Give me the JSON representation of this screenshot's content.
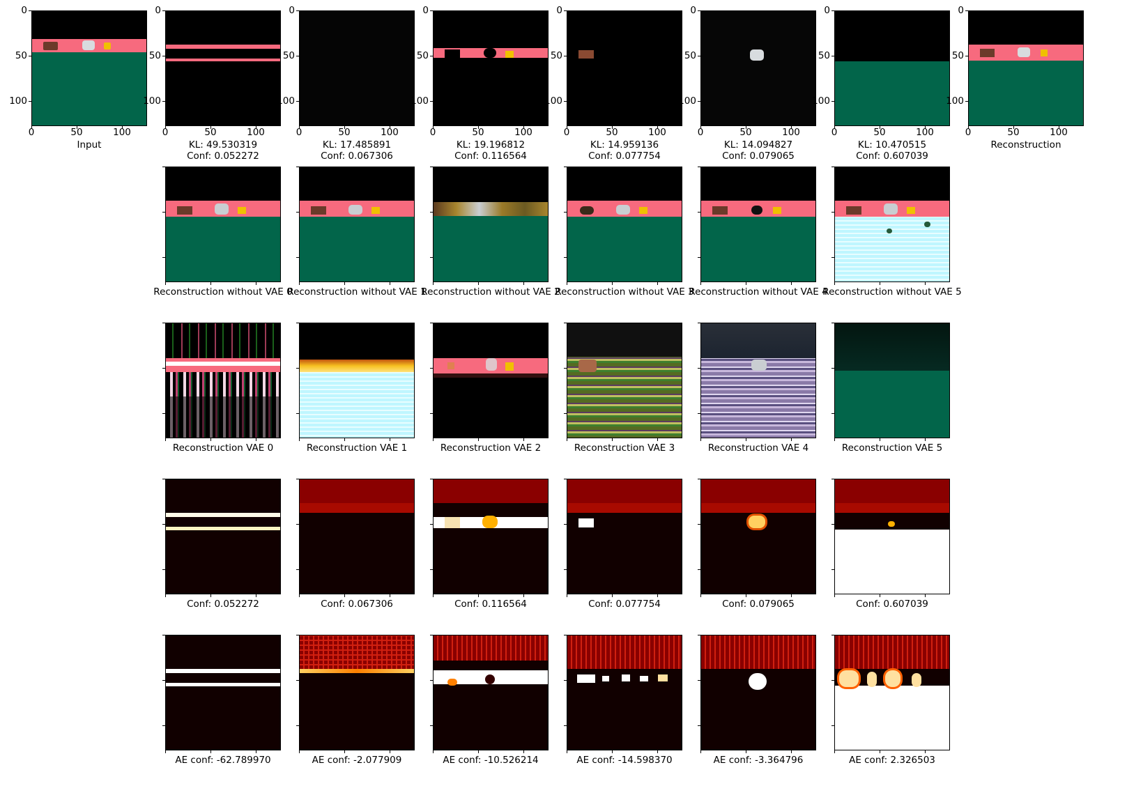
{
  "figure": {
    "axis_ticks": {
      "y": [
        "0",
        "50",
        "100"
      ],
      "x": [
        "0",
        "50",
        "100"
      ]
    },
    "top_row": [
      {
        "id": "input",
        "caption": "Input"
      },
      {
        "id": "c1",
        "caption": "KL: 49.530319\nConf: 0.052272"
      },
      {
        "id": "c2",
        "caption": "KL: 17.485891\nConf: 0.067306"
      },
      {
        "id": "c3",
        "caption": "KL: 19.196812\nConf: 0.116564"
      },
      {
        "id": "c4",
        "caption": "KL: 14.959136\nConf: 0.077754"
      },
      {
        "id": "c5",
        "caption": "KL: 14.094827\nConf: 0.079065"
      },
      {
        "id": "c6",
        "caption": "KL: 10.470515\nConf: 0.607039"
      },
      {
        "id": "recon",
        "caption": "Reconstruction"
      }
    ],
    "rows": [
      {
        "id": "without-vae",
        "captions": [
          "Reconstruction without VAE 0",
          "Reconstruction without VAE 1",
          "Reconstruction without VAE 2",
          "Reconstruction without VAE 3",
          "Reconstruction without VAE 4",
          "Reconstruction without VAE 5"
        ]
      },
      {
        "id": "recon-vae",
        "captions": [
          "Reconstruction VAE 0",
          "Reconstruction VAE 1",
          "Reconstruction VAE 2",
          "Reconstruction VAE 3",
          "Reconstruction VAE 4",
          "Reconstruction VAE 5"
        ]
      },
      {
        "id": "conf",
        "captions": [
          "Conf: 0.052272",
          "Conf: 0.067306",
          "Conf: 0.116564",
          "Conf: 0.077754",
          "Conf: 0.079065",
          "Conf: 0.607039"
        ]
      },
      {
        "id": "ae-conf",
        "captions": [
          "AE conf: -62.789970",
          "AE conf: -2.077909",
          "AE conf: -10.526214",
          "AE conf: -14.598370",
          "AE conf: -3.364796",
          "AE conf: 2.326503"
        ]
      }
    ],
    "colors": {
      "pink": "#f76a7e",
      "green": "#02654a",
      "cyan": "#bff6ff",
      "heat_red": "#8a0000",
      "heat_dark": "#110000"
    }
  }
}
